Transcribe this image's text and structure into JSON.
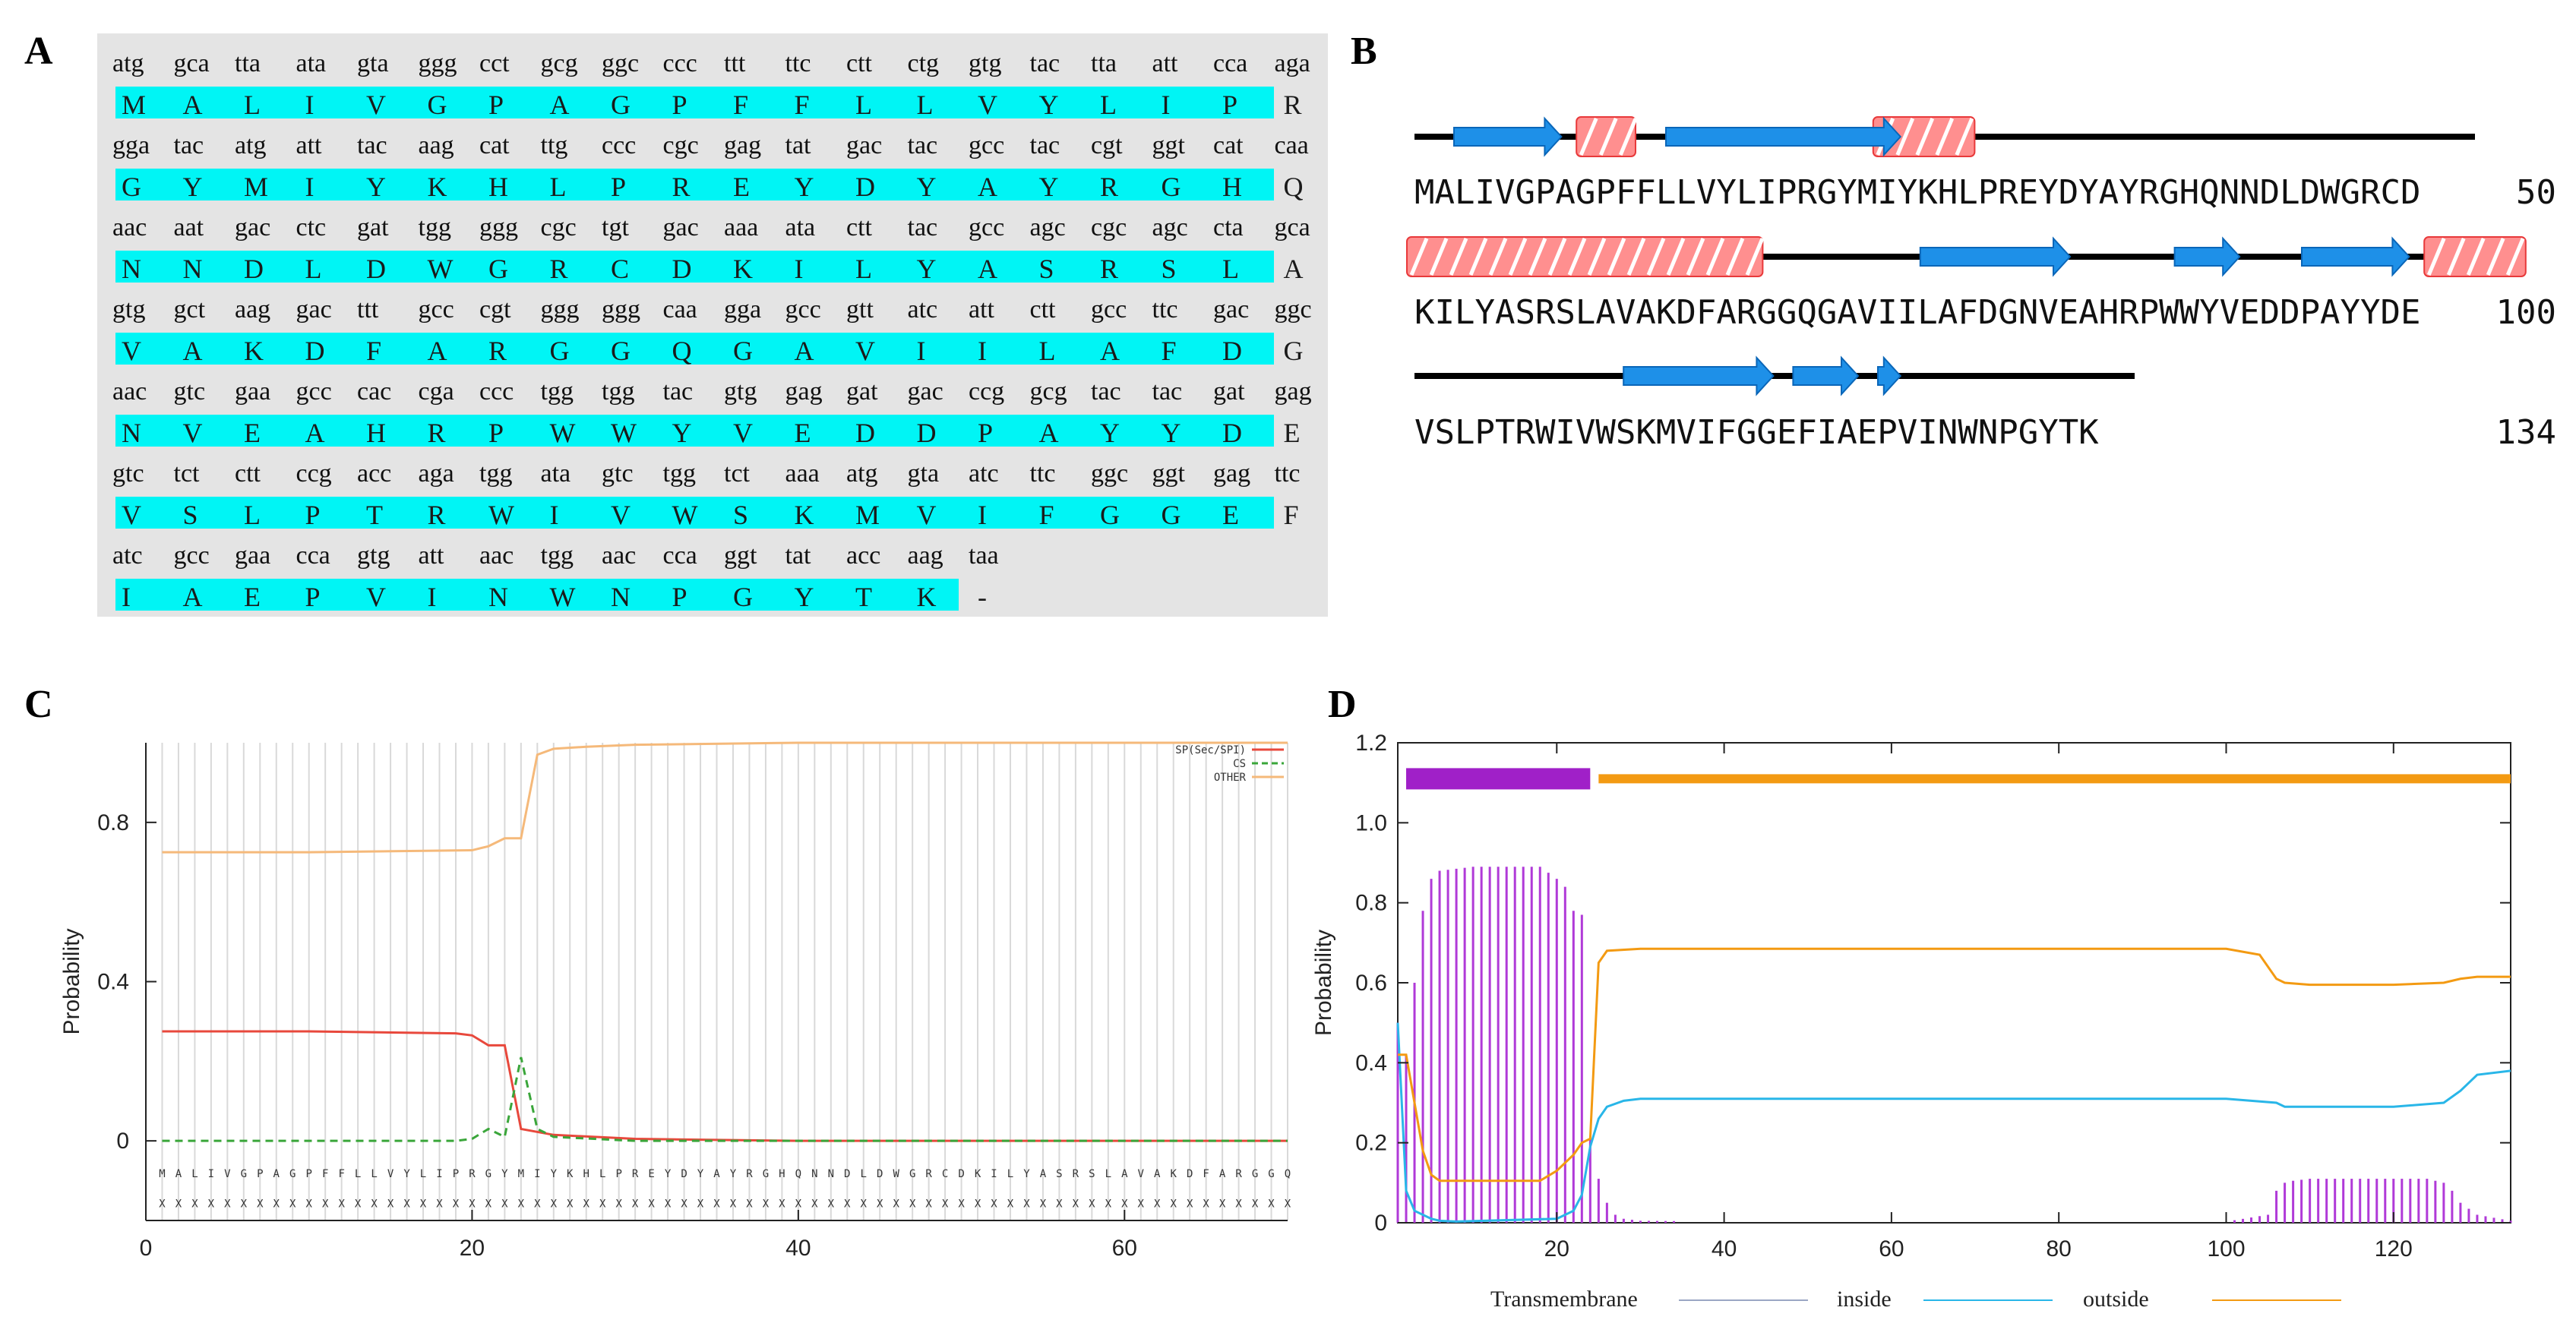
{
  "panels": {
    "a": {
      "label": "A",
      "rows": [
        {
          "codons": [
            "atg",
            "gca",
            "tta",
            "ata",
            "gta",
            "ggg",
            "cct",
            "gcg",
            "ggc",
            "ccc",
            "ttt",
            "ttc",
            "ctt",
            "ctg",
            "gtg",
            "tac",
            "tta",
            "att",
            "cca",
            "aga"
          ],
          "aa": [
            "M",
            "A",
            "L",
            "I",
            "V",
            "G",
            "P",
            "A",
            "G",
            "P",
            "F",
            "F",
            "L",
            "L",
            "V",
            "Y",
            "L",
            "I",
            "P",
            "R"
          ]
        },
        {
          "codons": [
            "gga",
            "tac",
            "atg",
            "att",
            "tac",
            "aag",
            "cat",
            "ttg",
            "ccc",
            "cgc",
            "gag",
            "tat",
            "gac",
            "tac",
            "gcc",
            "tac",
            "cgt",
            "ggt",
            "cat",
            "caa"
          ],
          "aa": [
            "G",
            "Y",
            "M",
            "I",
            "Y",
            "K",
            "H",
            "L",
            "P",
            "R",
            "E",
            "Y",
            "D",
            "Y",
            "A",
            "Y",
            "R",
            "G",
            "H",
            "Q"
          ]
        },
        {
          "codons": [
            "aac",
            "aat",
            "gac",
            "ctc",
            "gat",
            "tgg",
            "ggg",
            "cgc",
            "tgt",
            "gac",
            "aaa",
            "ata",
            "ctt",
            "tac",
            "gcc",
            "agc",
            "cgc",
            "agc",
            "cta",
            "gca"
          ],
          "aa": [
            "N",
            "N",
            "D",
            "L",
            "D",
            "W",
            "G",
            "R",
            "C",
            "D",
            "K",
            "I",
            "L",
            "Y",
            "A",
            "S",
            "R",
            "S",
            "L",
            "A"
          ]
        },
        {
          "codons": [
            "gtg",
            "gct",
            "aag",
            "gac",
            "ttt",
            "gcc",
            "cgt",
            "ggg",
            "ggg",
            "caa",
            "gga",
            "gcc",
            "gtt",
            "atc",
            "att",
            "ctt",
            "gcc",
            "ttc",
            "gac",
            "ggc"
          ],
          "aa": [
            "V",
            "A",
            "K",
            "D",
            "F",
            "A",
            "R",
            "G",
            "G",
            "Q",
            "G",
            "A",
            "V",
            "I",
            "I",
            "L",
            "A",
            "F",
            "D",
            "G"
          ]
        },
        {
          "codons": [
            "aac",
            "gtc",
            "gaa",
            "gcc",
            "cac",
            "cga",
            "ccc",
            "tgg",
            "tgg",
            "tac",
            "gtg",
            "gag",
            "gat",
            "gac",
            "ccg",
            "gcg",
            "tac",
            "tac",
            "gat",
            "gag"
          ],
          "aa": [
            "N",
            "V",
            "E",
            "A",
            "H",
            "R",
            "P",
            "W",
            "W",
            "Y",
            "V",
            "E",
            "D",
            "D",
            "P",
            "A",
            "Y",
            "Y",
            "D",
            "E"
          ]
        },
        {
          "codons": [
            "gtc",
            "tct",
            "ctt",
            "ccg",
            "acc",
            "aga",
            "tgg",
            "ata",
            "gtc",
            "tgg",
            "tct",
            "aaa",
            "atg",
            "gta",
            "atc",
            "ttc",
            "ggc",
            "ggt",
            "gag",
            "ttc"
          ],
          "aa": [
            "V",
            "S",
            "L",
            "P",
            "T",
            "R",
            "W",
            "I",
            "V",
            "W",
            "S",
            "K",
            "M",
            "V",
            "I",
            "F",
            "G",
            "G",
            "E",
            "F"
          ]
        },
        {
          "codons": [
            "atc",
            "gcc",
            "gaa",
            "cca",
            "gtg",
            "att",
            "aac",
            "tgg",
            "aac",
            "cca",
            "ggt",
            "tat",
            "acc",
            "aag",
            "taa"
          ],
          "aa": [
            "I",
            "A",
            "E",
            "P",
            "V",
            "I",
            "N",
            "W",
            "N",
            "P",
            "G",
            "Y",
            "T",
            "K",
            "-"
          ]
        }
      ]
    },
    "b": {
      "label": "B",
      "lines": [
        {
          "seq": "MALIVGPAGPFFLLVYLIPRGYMIYKHLPREYDYAYRGHQNNDLDWGRCD",
          "num": "50"
        },
        {
          "seq": "KILYASRSLAVAKDFARGGQGAVIILAFDGNVEAHRPWWYVEDDPAYYDE",
          "num": "100"
        },
        {
          "seq": "VSLPTRWIVWSKMVIFGGEFIAEPVINWNPGYTK",
          "num": "134"
        }
      ]
    },
    "c": {
      "label": "C",
      "sequence_row": "MALIVGPAGPFFLLVYLIPRGYMIYKHLPREYDYAYRGHQNNDLDWGRCDKILYASRSLAVAKDFARGGQ",
      "x_row": "XXXXXXXXXXXXXXXXXXXXXXXXXXXXXXXXXXXXXXXXXXXXXXXXXXXXXXXXXXXXXXXXXXXXXX",
      "legend": [
        "SP(Sec/SPI)",
        "CS",
        "OTHER"
      ]
    },
    "d": {
      "label": "D",
      "legend": [
        "Transmembrane",
        "inside",
        "outside"
      ]
    }
  },
  "chart_data": [
    {
      "panel": "C",
      "type": "line",
      "title": "",
      "xlabel": "",
      "ylabel": "Probability",
      "xlim": [
        0,
        70
      ],
      "ylim": [
        -0.2,
        1.0
      ],
      "xticks": [
        "0",
        "20",
        "40",
        "60"
      ],
      "yticks": [
        "0",
        "0.4",
        "0.8"
      ],
      "series": [
        {
          "name": "SP(Sec/SPI)",
          "color": "#e8483c",
          "dash": "solid",
          "x": [
            1,
            10,
            19,
            20,
            21,
            22,
            23,
            25,
            30,
            40,
            70
          ],
          "y": [
            0.275,
            0.275,
            0.27,
            0.265,
            0.24,
            0.24,
            0.03,
            0.015,
            0.005,
            0.0,
            0.0
          ]
        },
        {
          "name": "CS",
          "color": "#3aa63a",
          "dash": "dashed",
          "x": [
            1,
            19,
            20,
            21,
            22,
            23,
            24,
            25,
            30,
            70
          ],
          "y": [
            0.0,
            0.0,
            0.005,
            0.03,
            0.01,
            0.21,
            0.03,
            0.01,
            0.0,
            0.0
          ]
        },
        {
          "name": "OTHER",
          "color": "#f5b97a",
          "dash": "solid",
          "x": [
            1,
            10,
            20,
            21,
            22,
            23,
            24,
            25,
            27,
            30,
            40,
            70
          ],
          "y": [
            0.725,
            0.725,
            0.73,
            0.74,
            0.76,
            0.76,
            0.97,
            0.985,
            0.99,
            0.995,
            1.0,
            1.0
          ]
        }
      ]
    },
    {
      "panel": "D",
      "type": "line",
      "title": "",
      "xlabel": "",
      "ylabel": "Probability",
      "xlim": [
        1,
        134
      ],
      "ylim": [
        0,
        1.2
      ],
      "xticks": [
        "20",
        "40",
        "60",
        "80",
        "100",
        "120"
      ],
      "yticks": [
        "0",
        "0.2",
        "0.4",
        "0.6",
        "0.8",
        "1.0",
        "1.2"
      ],
      "topology_bars": [
        {
          "name": "Transmembrane",
          "color": "#a020c8",
          "start": 2,
          "end": 24
        },
        {
          "name": "outside",
          "color": "#f39a12",
          "start": 25,
          "end": 134
        }
      ],
      "series": [
        {
          "name": "Transmembrane",
          "color": "#b03ad8",
          "style": "impulses",
          "x": [
            1,
            2,
            3,
            4,
            5,
            6,
            8,
            10,
            12,
            14,
            16,
            18,
            20,
            21,
            22,
            23,
            24,
            25,
            26,
            27,
            28,
            30,
            40,
            60,
            80,
            100,
            105,
            106,
            107,
            108,
            110,
            115,
            120,
            124,
            126,
            127,
            128,
            130,
            134
          ],
          "y": [
            0.5,
            0.42,
            0.6,
            0.78,
            0.86,
            0.88,
            0.885,
            0.89,
            0.89,
            0.89,
            0.89,
            0.89,
            0.86,
            0.84,
            0.78,
            0.77,
            0.21,
            0.11,
            0.05,
            0.02,
            0.01,
            0.005,
            0.003,
            0.003,
            0.003,
            0.003,
            0.02,
            0.08,
            0.1,
            0.105,
            0.11,
            0.11,
            0.11,
            0.11,
            0.1,
            0.08,
            0.05,
            0.02,
            0.005
          ]
        },
        {
          "name": "inside",
          "color": "#29b6e8",
          "style": "line",
          "x": [
            1,
            2,
            3,
            4,
            5,
            6,
            8,
            20,
            22,
            23,
            24,
            25,
            26,
            28,
            30,
            40,
            60,
            80,
            100,
            106,
            107,
            110,
            120,
            126,
            128,
            130,
            134
          ],
          "y": [
            0.5,
            0.08,
            0.03,
            0.02,
            0.01,
            0.005,
            0.003,
            0.01,
            0.03,
            0.07,
            0.19,
            0.26,
            0.29,
            0.305,
            0.31,
            0.31,
            0.31,
            0.31,
            0.31,
            0.3,
            0.29,
            0.29,
            0.29,
            0.3,
            0.33,
            0.37,
            0.38
          ]
        },
        {
          "name": "outside",
          "color": "#f39a12",
          "style": "line",
          "x": [
            1,
            2,
            3,
            4,
            5,
            6,
            10,
            18,
            20,
            22,
            23,
            24,
            25,
            26,
            30,
            60,
            80,
            100,
            104,
            106,
            107,
            110,
            120,
            126,
            128,
            130,
            134
          ],
          "y": [
            0.42,
            0.42,
            0.3,
            0.18,
            0.12,
            0.105,
            0.105,
            0.105,
            0.13,
            0.17,
            0.2,
            0.21,
            0.65,
            0.68,
            0.685,
            0.685,
            0.685,
            0.685,
            0.67,
            0.61,
            0.6,
            0.595,
            0.595,
            0.6,
            0.61,
            0.615,
            0.615
          ]
        }
      ]
    }
  ]
}
